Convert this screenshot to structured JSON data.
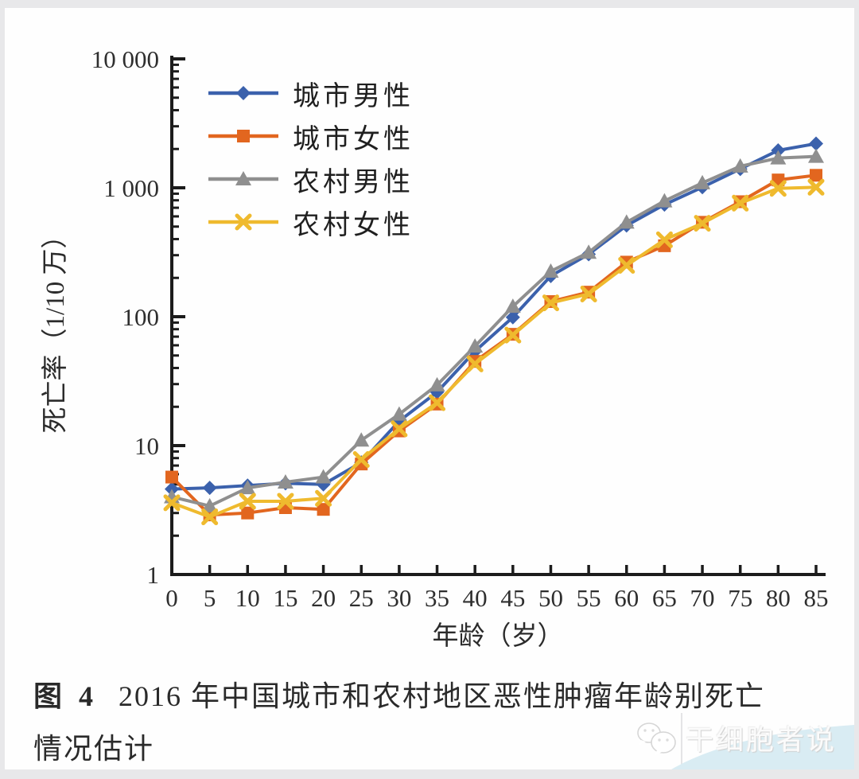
{
  "page": {
    "background_color": "#e8e8ea",
    "card_color": "#fefefe"
  },
  "chart_data": {
    "type": "line",
    "title": "",
    "xlabel": "年龄（岁）",
    "ylabel": "死亡率（1/10 万）",
    "x_unit": "岁",
    "y_unit": "1/10万",
    "y_scale": "log",
    "ylim": [
      1,
      10000
    ],
    "xlim": [
      0,
      85
    ],
    "grid": false,
    "legend_position": "top-left-inside",
    "y_ticks": [
      "1",
      "10",
      "100",
      "1 000",
      "10 000"
    ],
    "x": [
      0,
      5,
      10,
      15,
      20,
      25,
      30,
      35,
      40,
      45,
      50,
      55,
      60,
      65,
      70,
      75,
      80,
      85
    ],
    "series": [
      {
        "name": "城市男性",
        "marker": "diamond",
        "color": "#3b61ac",
        "values": [
          4.6,
          4.7,
          4.9,
          5.1,
          5.0,
          7.4,
          15.5,
          26,
          54,
          99,
          207,
          305,
          510,
          740,
          1010,
          1400,
          1950,
          2200
        ]
      },
      {
        "name": "城市女性",
        "marker": "square",
        "color": "#e2661f",
        "values": [
          5.7,
          2.9,
          3.0,
          3.3,
          3.2,
          7.2,
          13,
          21,
          45,
          73,
          131,
          155,
          265,
          355,
          540,
          780,
          1150,
          1250
        ]
      },
      {
        "name": "农村男性",
        "marker": "triangle",
        "color": "#8f8f8f",
        "values": [
          4.0,
          3.4,
          4.7,
          5.2,
          5.7,
          11,
          17.5,
          29.5,
          59,
          120,
          225,
          315,
          540,
          790,
          1090,
          1470,
          1700,
          1750
        ]
      },
      {
        "name": "农村女性",
        "marker": "x",
        "color": "#efba2e",
        "values": [
          3.6,
          2.8,
          3.7,
          3.7,
          3.9,
          7.8,
          13.5,
          21.5,
          43,
          72,
          128,
          150,
          250,
          395,
          530,
          760,
          990,
          1010
        ]
      }
    ],
    "axis_color": "#1c1c1c"
  },
  "caption": {
    "figure_label": "图 4",
    "line1": "2016 年中国城市和农村地区恶性肿瘤年龄别死亡",
    "line2": "情况估计"
  },
  "watermark": {
    "text": "干细胞者说",
    "icon": "chat-bubbles-icon",
    "wave_color": "#d9ecf3"
  }
}
